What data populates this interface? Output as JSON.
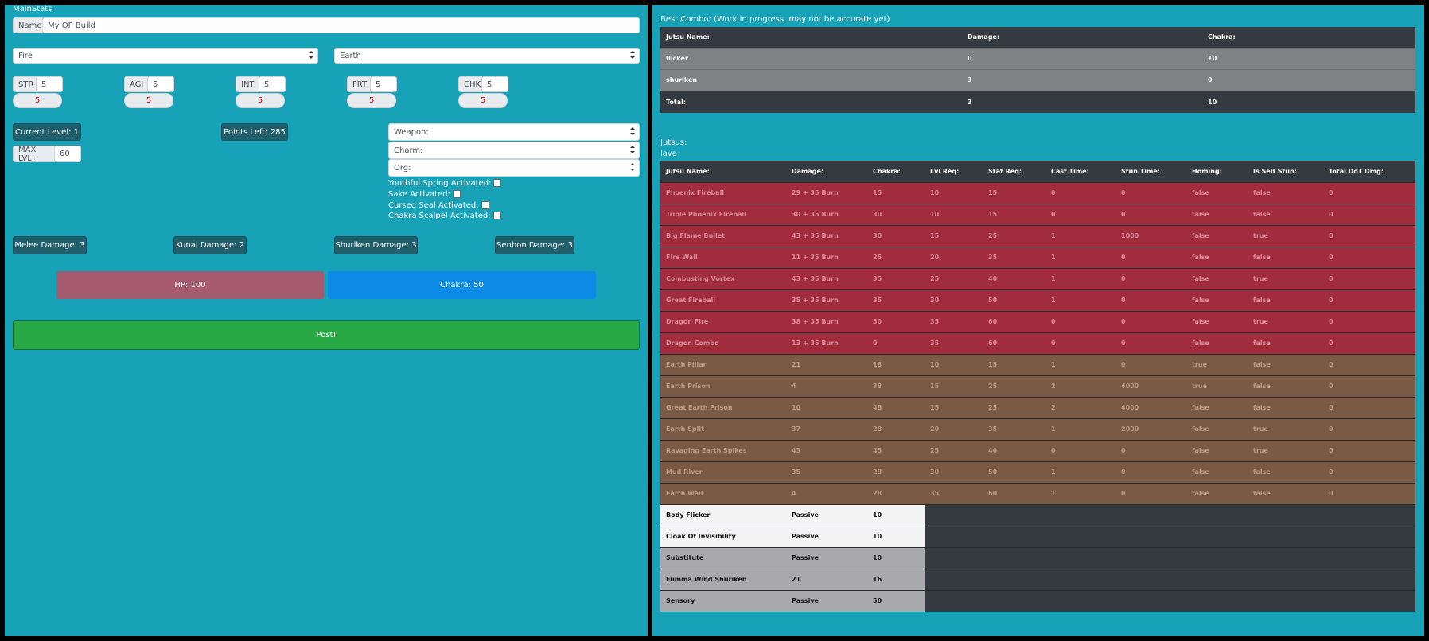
{
  "left": {
    "title": "MainStats",
    "name_label": "Name",
    "name_value": "My OP Build",
    "element1": "Fire",
    "element2": "Earth",
    "stats": [
      {
        "label": "STR",
        "value": "5",
        "points": "5"
      },
      {
        "label": "AGI",
        "value": "5",
        "points": "5"
      },
      {
        "label": "INT",
        "value": "5",
        "points": "5"
      },
      {
        "label": "FRT",
        "value": "5",
        "points": "5"
      },
      {
        "label": "CHK",
        "value": "5",
        "points": "5"
      }
    ],
    "current_level": "Current Level: 1",
    "points_left": "Points Left: 285",
    "max_lvl_label": "MAX LVL:",
    "max_lvl_value": "60",
    "selects": [
      "Weapon:",
      "Charm:",
      "Org:"
    ],
    "checkboxes": [
      "Youthful Spring Activated:",
      "Sake Activated:",
      "Cursed Seal Activated:",
      "Chakra Scalpel Activated:"
    ],
    "damages": [
      "Melee Damage: 3",
      "Kunai Damage: 2",
      "Shuriken Damage: 3",
      "Senbon Damage: 3"
    ],
    "hp": "HP: 100",
    "chakra": "Chakra: 50",
    "post": "Post!"
  },
  "right": {
    "combo_title": "Best Combo: (Work in progress, may not be accurate yet)",
    "combo_headers": [
      "Jutsu Name:",
      "Damage:",
      "Chakra:"
    ],
    "combo_rows": [
      [
        "flicker",
        "0",
        "10"
      ],
      [
        "shuriken",
        "3",
        "0"
      ]
    ],
    "combo_total": [
      "Total:",
      "3",
      "10"
    ],
    "jutsus_label": "Jutsus:",
    "jutsus_subtitle": "lava",
    "headers": [
      "Jutsu Name:",
      "Damage:",
      "Chakra:",
      "Lvl Req:",
      "Stat Req:",
      "Cast Time:",
      "Stun Time:",
      "Homing:",
      "Is Self Stun:",
      "Total DoT Dmg:"
    ],
    "fire_rows": [
      [
        "Phoenix Fireball",
        "29 + 35 Burn",
        "15",
        "10",
        "15",
        "0",
        "0",
        "false",
        "false",
        "0"
      ],
      [
        "Triple Phoenix Fireball",
        "30 + 35 Burn",
        "30",
        "10",
        "15",
        "0",
        "0",
        "false",
        "false",
        "0"
      ],
      [
        "Big Flame Bullet",
        "43 + 35 Burn",
        "30",
        "15",
        "25",
        "1",
        "1000",
        "false",
        "true",
        "0"
      ],
      [
        "Fire Wall",
        "11 + 35 Burn",
        "25",
        "20",
        "35",
        "1",
        "0",
        "false",
        "false",
        "0"
      ],
      [
        "Combusting Vortex",
        "43 + 35 Burn",
        "35",
        "25",
        "40",
        "1",
        "0",
        "false",
        "true",
        "0"
      ],
      [
        "Great Fireball",
        "35 + 35 Burn",
        "35",
        "30",
        "50",
        "1",
        "0",
        "false",
        "false",
        "0"
      ],
      [
        "Dragon Fire",
        "38 + 35 Burn",
        "50",
        "35",
        "60",
        "0",
        "0",
        "false",
        "true",
        "0"
      ],
      [
        "Dragon Combo",
        "13 + 35 Burn",
        "0",
        "35",
        "60",
        "0",
        "0",
        "false",
        "false",
        "0"
      ]
    ],
    "earth_rows": [
      [
        "Earth Pillar",
        "21",
        "18",
        "10",
        "15",
        "1",
        "0",
        "true",
        "false",
        "0"
      ],
      [
        "Earth Prison",
        "4",
        "38",
        "15",
        "25",
        "2",
        "4000",
        "true",
        "false",
        "0"
      ],
      [
        "Great Earth Prison",
        "10",
        "48",
        "15",
        "25",
        "2",
        "4000",
        "false",
        "false",
        "0"
      ],
      [
        "Earth Split",
        "37",
        "28",
        "20",
        "35",
        "1",
        "2000",
        "false",
        "true",
        "0"
      ],
      [
        "Ravaging Earth Spikes",
        "43",
        "45",
        "25",
        "40",
        "0",
        "0",
        "false",
        "true",
        "0"
      ],
      [
        "Mud River",
        "35",
        "28",
        "30",
        "50",
        "1",
        "0",
        "false",
        "false",
        "0"
      ],
      [
        "Earth Wall",
        "4",
        "28",
        "35",
        "60",
        "1",
        "0",
        "false",
        "false",
        "0"
      ]
    ],
    "other_rows": [
      [
        "Body Flicker",
        "Passive",
        "10"
      ],
      [
        "Cloak Of Invisibility",
        "Passive",
        "10"
      ],
      [
        "Substitute",
        "Passive",
        "10"
      ],
      [
        "Fumma Wind Shuriken",
        "21",
        "16"
      ],
      [
        "Sensory",
        "Passive",
        "50"
      ]
    ]
  }
}
